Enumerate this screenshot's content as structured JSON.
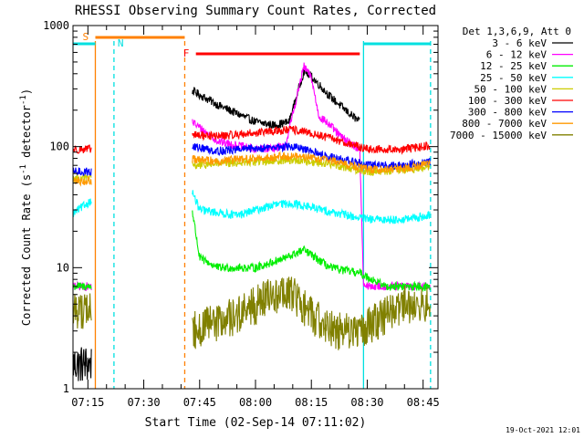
{
  "chart_data": {
    "type": "line",
    "title": "RHESSI Observing Summary Count Rates, Corrected",
    "xlabel": "Start Time (02-Sep-14 07:11:02)",
    "ylabel_main": "Corrected Count Rate (s",
    "ylabel_sup1": "-1",
    "ylabel_mid": " detector",
    "ylabel_sup2": "-1",
    "ylabel_end": ")",
    "yscale": "log",
    "ylim": [
      1,
      1000
    ],
    "xlim": [
      "07:11",
      "08:49"
    ],
    "x_ticks": [
      "07:15",
      "07:30",
      "07:45",
      "08:00",
      "08:15",
      "08:30",
      "08:45"
    ],
    "y_ticks": [
      "1",
      "10",
      "100",
      "1000"
    ],
    "legend_title": "Det 1,3,6,9, Att 0",
    "timestamp": "19-Oct-2021 12:01",
    "series": [
      {
        "name": "3 - 6 keV",
        "color": "#000000",
        "points": [
          [
            "07:11",
            1.6
          ],
          [
            "07:16",
            1.6
          ],
          [
            "07:43",
            290
          ],
          [
            "07:50",
            220
          ],
          [
            "08:00",
            160
          ],
          [
            "08:05",
            150
          ],
          [
            "08:09",
            160
          ],
          [
            "08:13",
            420
          ],
          [
            "08:15",
            380
          ],
          [
            "08:20",
            260
          ],
          [
            "08:25",
            190
          ],
          [
            "08:28",
            160
          ]
        ]
      },
      {
        "name": "6 - 12 keV",
        "color": "#ff00ff",
        "points": [
          [
            "07:11",
            7
          ],
          [
            "07:16",
            7
          ],
          [
            "07:43",
            160
          ],
          [
            "07:50",
            110
          ],
          [
            "08:00",
            95
          ],
          [
            "08:08",
            100
          ],
          [
            "08:13",
            460
          ],
          [
            "08:15",
            370
          ],
          [
            "08:17",
            180
          ],
          [
            "08:20",
            150
          ],
          [
            "08:23",
            120
          ],
          [
            "08:28",
            95
          ],
          [
            "08:29",
            7
          ],
          [
            "08:47",
            7
          ]
        ]
      },
      {
        "name": "12 - 25 keV",
        "color": "#00ee00",
        "points": [
          [
            "07:11",
            7
          ],
          [
            "07:16",
            7
          ],
          [
            "07:43",
            30
          ],
          [
            "07:45",
            12
          ],
          [
            "07:50",
            10
          ],
          [
            "08:00",
            10
          ],
          [
            "08:08",
            12
          ],
          [
            "08:13",
            14
          ],
          [
            "08:20",
            10
          ],
          [
            "08:28",
            9
          ],
          [
            "08:35",
            7
          ],
          [
            "08:47",
            7
          ]
        ]
      },
      {
        "name": "25 - 50 keV",
        "color": "#00ffff",
        "points": [
          [
            "07:11",
            28
          ],
          [
            "07:16",
            36
          ],
          [
            "07:43",
            42
          ],
          [
            "07:45",
            30
          ],
          [
            "07:55",
            27
          ],
          [
            "08:05",
            33
          ],
          [
            "08:10",
            34
          ],
          [
            "08:20",
            29
          ],
          [
            "08:30",
            25
          ],
          [
            "08:40",
            25
          ],
          [
            "08:47",
            27
          ]
        ]
      },
      {
        "name": "50 - 100 keV",
        "color": "#cccc00",
        "points": [
          [
            "07:11",
            55
          ],
          [
            "07:16",
            55
          ],
          [
            "07:43",
            70
          ],
          [
            "07:50",
            72
          ],
          [
            "08:00",
            75
          ],
          [
            "08:10",
            78
          ],
          [
            "08:20",
            72
          ],
          [
            "08:30",
            62
          ],
          [
            "08:40",
            64
          ],
          [
            "08:47",
            68
          ]
        ]
      },
      {
        "name": "100 - 300 keV",
        "color": "#ff0000",
        "points": [
          [
            "07:11",
            95
          ],
          [
            "07:16",
            95
          ],
          [
            "07:43",
            125
          ],
          [
            "07:50",
            122
          ],
          [
            "08:00",
            130
          ],
          [
            "08:10",
            138
          ],
          [
            "08:20",
            118
          ],
          [
            "08:30",
            95
          ],
          [
            "08:40",
            95
          ],
          [
            "08:47",
            102
          ]
        ]
      },
      {
        "name": "300 - 800 keV",
        "color": "#0000ff",
        "points": [
          [
            "07:11",
            62
          ],
          [
            "07:16",
            62
          ],
          [
            "07:43",
            100
          ],
          [
            "07:50",
            92
          ],
          [
            "08:00",
            97
          ],
          [
            "08:10",
            100
          ],
          [
            "08:20",
            82
          ],
          [
            "08:30",
            70
          ],
          [
            "08:40",
            70
          ],
          [
            "08:47",
            76
          ]
        ]
      },
      {
        "name": "800 - 7000 keV",
        "color": "#ff9900",
        "points": [
          [
            "07:11",
            52
          ],
          [
            "07:16",
            52
          ],
          [
            "07:43",
            78
          ],
          [
            "07:50",
            76
          ],
          [
            "08:00",
            80
          ],
          [
            "08:10",
            84
          ],
          [
            "08:20",
            78
          ],
          [
            "08:30",
            65
          ],
          [
            "08:40",
            66
          ],
          [
            "08:47",
            72
          ]
        ]
      },
      {
        "name": "7000 - 15000 keV",
        "color": "#808000",
        "points": [
          [
            "07:11",
            4.5
          ],
          [
            "07:16",
            4.5
          ],
          [
            "07:43",
            3
          ],
          [
            "07:55",
            4
          ],
          [
            "08:05",
            6
          ],
          [
            "08:10",
            6
          ],
          [
            "08:15",
            4
          ],
          [
            "08:22",
            3
          ],
          [
            "08:28",
            3
          ],
          [
            "08:40",
            5
          ],
          [
            "08:47",
            5
          ]
        ]
      }
    ],
    "annotations": {
      "saa": {
        "label": "S",
        "color": "#ff8000",
        "start": "07:17",
        "end": "07:41"
      },
      "night": {
        "label": "N",
        "color": "#00e0e0",
        "segments": [
          [
            "07:11",
            "07:17"
          ],
          [
            "08:29",
            "08:47"
          ]
        ]
      },
      "flare": {
        "label": "F",
        "color": "#ff0000",
        "start": "07:44",
        "end": "08:28"
      },
      "vlines": [
        {
          "time": "07:17",
          "color": "#ff8000",
          "style": "solid"
        },
        {
          "time": "07:41",
          "color": "#ff8000",
          "style": "dashed"
        },
        {
          "time": "07:22",
          "color": "#00e0e0",
          "style": "dashed"
        },
        {
          "time": "08:29",
          "color": "#00e0e0",
          "style": "solid"
        },
        {
          "time": "08:47",
          "color": "#00e0e0",
          "style": "dashed"
        }
      ]
    }
  }
}
